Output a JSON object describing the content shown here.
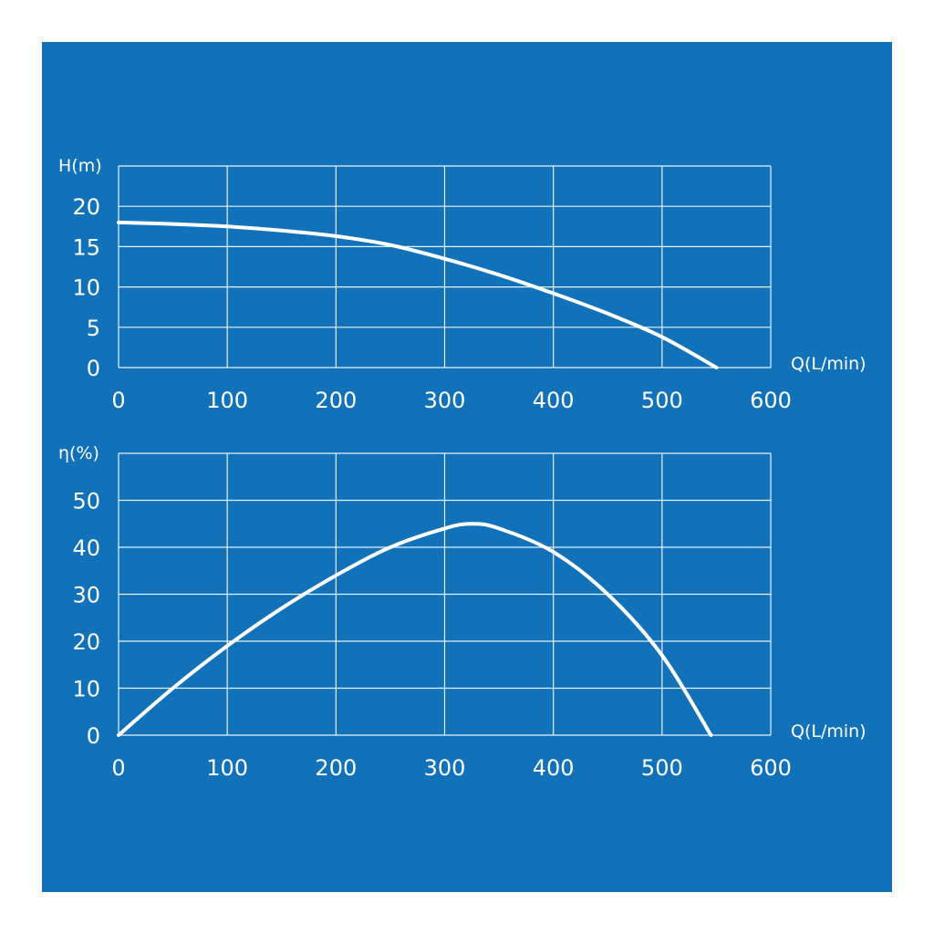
{
  "chart_data": [
    {
      "type": "line",
      "ylabel": "H(m)",
      "xlabel": "Q(L/min)",
      "xlim": [
        0,
        600
      ],
      "ylim": [
        0,
        25
      ],
      "xticks": [
        "0",
        "100",
        "200",
        "300",
        "400",
        "500",
        "600"
      ],
      "yticks": [
        "0",
        "5",
        "10",
        "15",
        "20"
      ],
      "grid": true,
      "series": [
        {
          "x": [
            0,
            50,
            100,
            150,
            200,
            250,
            300,
            350,
            400,
            450,
            500,
            550
          ],
          "y": [
            18,
            17.8,
            17.5,
            17.0,
            16.3,
            15.2,
            13.5,
            11.5,
            9.2,
            6.7,
            3.8,
            0
          ]
        }
      ]
    },
    {
      "type": "line",
      "ylabel": "η(%)",
      "xlabel": "Q(L/min)",
      "xlim": [
        0,
        600
      ],
      "ylim": [
        0,
        60
      ],
      "xticks": [
        "0",
        "100",
        "200",
        "300",
        "400",
        "500",
        "600"
      ],
      "yticks": [
        "0",
        "10",
        "20",
        "30",
        "40",
        "50"
      ],
      "grid": true,
      "series": [
        {
          "x": [
            0,
            50,
            100,
            150,
            200,
            250,
            300,
            325,
            350,
            400,
            450,
            500,
            545
          ],
          "y": [
            0,
            10,
            19,
            27,
            34,
            40,
            44,
            45,
            44,
            39,
            30,
            17,
            0
          ]
        }
      ]
    }
  ]
}
